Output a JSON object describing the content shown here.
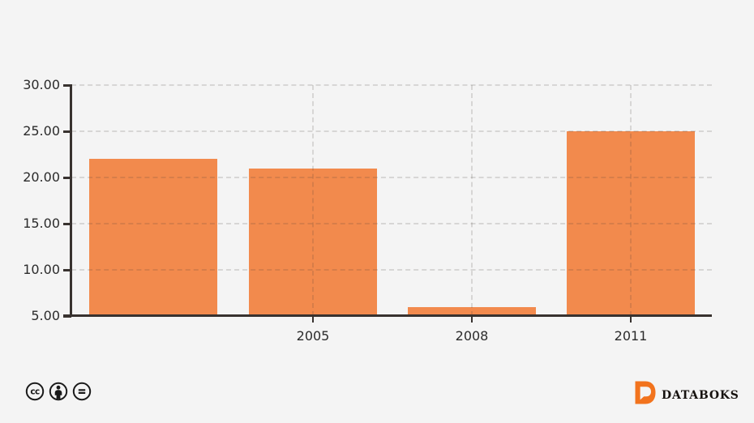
{
  "chart_data": {
    "type": "bar",
    "categories": [
      "",
      "2005",
      "2008",
      "2011"
    ],
    "values": [
      22,
      21,
      6,
      25
    ],
    "title": "",
    "xlabel": "",
    "ylabel": "",
    "ylim": [
      5,
      30
    ],
    "yticks": [
      30,
      25,
      20,
      15,
      10,
      5
    ],
    "ytick_labels": [
      "30.00",
      "25.00",
      "20.00",
      "15.00",
      "10.00",
      "5.00"
    ],
    "bar_color": "#F28A4D",
    "grid": true,
    "legend": false,
    "background": "#f4f4f4"
  },
  "footer": {
    "license_icons": [
      "cc-icon",
      "attribution-icon",
      "no-derivatives-icon"
    ],
    "brand": {
      "name": "DATABOKS",
      "logo_color": "#F2731D"
    }
  }
}
